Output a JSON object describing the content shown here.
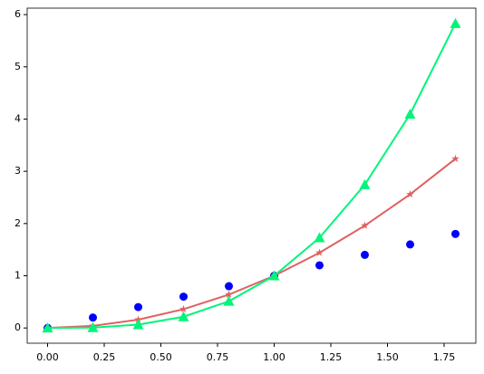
{
  "chart_data": {
    "type": "line",
    "x": [
      0,
      0.2,
      0.4,
      0.6,
      0.8,
      1.0,
      1.2,
      1.4,
      1.6,
      1.8
    ],
    "series": [
      {
        "color": "#0000ff",
        "marker": "circle",
        "line": false,
        "values": [
          0,
          0.2,
          0.4,
          0.6,
          0.8,
          1.0,
          1.2,
          1.4,
          1.6,
          1.8
        ]
      },
      {
        "color": "#e06060",
        "marker": "star",
        "line": true,
        "values": [
          0,
          0.04,
          0.16,
          0.36,
          0.64,
          1.0,
          1.44,
          1.96,
          2.56,
          3.24
        ]
      },
      {
        "color": "#00f57a",
        "marker": "triangle",
        "line": true,
        "values": [
          0,
          0.008,
          0.064,
          0.216,
          0.512,
          1.0,
          1.728,
          2.744,
          4.096,
          5.832
        ]
      }
    ],
    "xlim": [
      -0.09,
      1.89
    ],
    "ylim": [
      -0.2916,
      6.1236
    ],
    "xticks": [
      {
        "value": 0,
        "label": "0.00"
      },
      0.25,
      {
        "value": 0.5,
        "label": "0.50"
      },
      0.75,
      {
        "value": 1,
        "label": "1.00"
      },
      1.25,
      {
        "value": 1.5,
        "label": "1.50"
      },
      1.75
    ],
    "yticks": [
      0,
      1,
      2,
      3,
      4,
      5,
      6
    ],
    "grid": false
  }
}
